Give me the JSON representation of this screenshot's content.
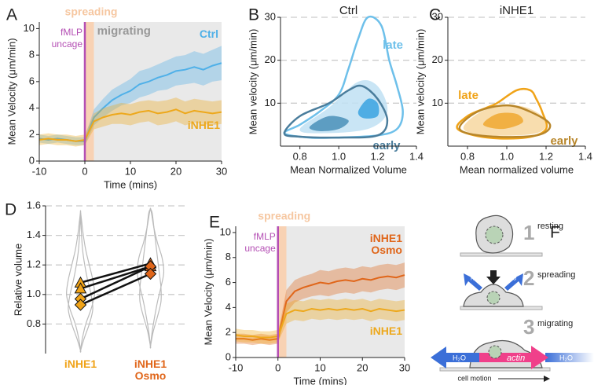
{
  "chart_data": [
    {
      "type": "line",
      "panel": "A",
      "xlabel": "Time (mins)",
      "ylabel": "Mean Velocity (μm/min)",
      "xlim": [
        -10,
        30
      ],
      "xticks": [
        -10,
        0,
        10,
        20,
        30
      ],
      "ylim": [
        0,
        10.5
      ],
      "yticks": [
        0,
        2,
        4,
        6,
        8,
        10
      ],
      "grid": false,
      "spans": [
        {
          "label": "spreading",
          "start": 0,
          "end": 2,
          "color": "#f6c7a1"
        },
        {
          "label": "migrating",
          "start": 2,
          "end": 30,
          "color": "#e4e4e4"
        }
      ],
      "vline": {
        "x": 0,
        "label": [
          "fMLP",
          "uncage"
        ],
        "color": "#b44fb4"
      },
      "x": [
        -10,
        -8,
        -6,
        -4,
        -2,
        0,
        2,
        4,
        6,
        8,
        10,
        12,
        14,
        16,
        18,
        20,
        22,
        24,
        26,
        28,
        30
      ],
      "series": [
        {
          "name": "Ctrl",
          "color": "#4fb0e8",
          "values": [
            1.7,
            1.6,
            1.7,
            1.6,
            1.5,
            1.5,
            3.3,
            4.0,
            4.6,
            5.0,
            5.3,
            5.8,
            6.0,
            6.3,
            6.5,
            6.8,
            6.9,
            7.1,
            6.9,
            7.2,
            7.4
          ],
          "errors": [
            0.3,
            0.3,
            0.3,
            0.3,
            0.3,
            0.3,
            0.6,
            0.7,
            0.8,
            0.8,
            0.9,
            1.0,
            1.0,
            1.0,
            1.1,
            1.1,
            1.1,
            1.2,
            1.2,
            1.2,
            1.3
          ]
        },
        {
          "name": "iNHE1",
          "color": "#eda81c",
          "values": [
            1.6,
            1.7,
            1.6,
            1.6,
            1.5,
            1.6,
            3.0,
            3.3,
            3.5,
            3.6,
            3.5,
            3.7,
            3.8,
            3.6,
            3.7,
            3.9,
            3.6,
            3.8,
            3.7,
            3.6,
            3.7
          ],
          "errors": [
            0.4,
            0.4,
            0.4,
            0.4,
            0.4,
            0.4,
            0.6,
            0.7,
            0.7,
            0.8,
            0.8,
            0.8,
            0.8,
            0.9,
            0.9,
            0.9,
            0.9,
            0.9,
            0.9,
            0.9,
            0.9
          ]
        }
      ]
    },
    {
      "type": "density",
      "panel": "B",
      "title": "Ctrl",
      "xlabel": "Mean Normalized Volume",
      "ylabel": "Mean velocity (μm/min)",
      "xlim": [
        0.7,
        1.4
      ],
      "xticks": [
        0.8,
        {
          "value": 1,
          "label": "1.0"
        },
        1.2,
        1.4
      ],
      "ylim": [
        0,
        30
      ],
      "yticks": [
        10,
        20,
        30
      ],
      "grid": true,
      "grid_style": "dashed",
      "contours": [
        {
          "color": "#bfe0f3",
          "fill": true,
          "x": [
            0.8,
            0.95,
            1.1,
            1.2,
            1.25,
            1.15,
            0.9
          ],
          "y": [
            4,
            9,
            15,
            14,
            8,
            4,
            3
          ]
        },
        {
          "color": "#4a90b8",
          "fill": true,
          "x": [
            0.85,
            0.95,
            1.05,
            1.0,
            0.9
          ],
          "y": [
            4.5,
            7,
            6,
            4,
            3.5
          ]
        },
        {
          "color": "#3aa3e0",
          "fill": true,
          "x": [
            1.1,
            1.15,
            1.2,
            1.2,
            1.13
          ],
          "y": [
            8,
            11,
            10,
            7,
            6.5
          ]
        },
        {
          "name": "late",
          "color": "#6ec0ea",
          "x": [
            0.72,
            0.8,
            0.9,
            1.0,
            1.05,
            1.1,
            1.15,
            1.22,
            1.26,
            1.3,
            1.33,
            1.3,
            1.2,
            1.0,
            0.85
          ],
          "y": [
            3,
            5,
            8,
            12,
            18,
            25,
            30,
            28,
            20,
            14,
            8,
            4,
            2.5,
            2,
            2
          ]
        },
        {
          "name": "early",
          "color": "#4a7d9c",
          "x": [
            0.72,
            0.8,
            0.95,
            1.05,
            1.12,
            1.2,
            1.25,
            1.2,
            1.0,
            0.8
          ],
          "y": [
            3,
            7,
            10,
            13,
            14,
            11,
            6,
            2.5,
            2,
            2.2
          ]
        }
      ]
    },
    {
      "type": "density",
      "panel": "C",
      "title": "iNHE1",
      "xlabel": "Mean normalized volume",
      "ylabel": "Mean velocity (μm/min)",
      "xlim": [
        0.7,
        1.4
      ],
      "xticks": [
        0.8,
        {
          "value": 1,
          "label": "1.0"
        },
        1.2,
        1.4
      ],
      "ylim": [
        0,
        30
      ],
      "yticks": [
        10,
        20,
        30
      ],
      "grid": true,
      "grid_style": "dashed",
      "contours": [
        {
          "color": "#f7d7a0",
          "fill": true,
          "x": [
            0.78,
            0.85,
            0.97,
            1.1,
            1.2,
            1.15,
            0.9
          ],
          "y": [
            4,
            7.5,
            9.5,
            9,
            6,
            3,
            2.5
          ]
        },
        {
          "color": "#f0a830",
          "fill": true,
          "x": [
            0.88,
            0.95,
            1.05,
            1.08,
            0.98
          ],
          "y": [
            5,
            7.5,
            7.5,
            5.5,
            4
          ]
        },
        {
          "name": "late",
          "color": "#f0a318",
          "x": [
            0.75,
            0.8,
            0.9,
            0.95,
            1.05,
            1.12,
            1.15,
            1.18,
            1.2,
            1.1,
            0.9
          ],
          "y": [
            4,
            7,
            9,
            10,
            13,
            13,
            11,
            8,
            4,
            2,
            2
          ]
        },
        {
          "name": "early",
          "color": "#b8862a",
          "x": [
            0.76,
            0.85,
            1.0,
            1.12,
            1.22,
            1.15,
            0.9
          ],
          "y": [
            4,
            8,
            9.5,
            8,
            5,
            2.5,
            2.3
          ]
        }
      ]
    },
    {
      "type": "violin",
      "panel": "D",
      "ylabel": "Relative volume",
      "categories": [
        "iNHE1",
        "iNHE1 Osmo"
      ],
      "category_colors": [
        "#f0a318",
        "#e0661a"
      ],
      "ylim": [
        0.6,
        1.6
      ],
      "yticks": [
        0.8,
        {
          "value": 1,
          "label": "1.0"
        },
        1.2,
        1.4,
        1.6
      ],
      "grid": true,
      "grid_style": "dashed",
      "violins": [
        [
          {
            "y": [
              0.62,
              0.7,
              0.8,
              0.9,
              1.0,
              1.1,
              1.2,
              1.3,
              1.4,
              1.5,
              1.56
            ],
            "width": [
              0,
              0.05,
              0.15,
              0.3,
              0.4,
              0.35,
              0.25,
              0.15,
              0.08,
              0.03,
              0
            ]
          },
          {
            "y": [
              0.62,
              0.7,
              0.8,
              0.9,
              1.0,
              1.1,
              1.2,
              1.3,
              1.4,
              1.5,
              1.56
            ],
            "width": [
              0,
              0.1,
              0.25,
              0.35,
              0.3,
              0.2,
              0.12,
              0.06,
              0.03,
              0.01,
              0
            ]
          }
        ],
        [
          {
            "y": [
              0.65,
              0.75,
              0.85,
              0.95,
              1.05,
              1.15,
              1.25,
              1.35,
              1.45,
              1.55,
              1.58
            ],
            "width": [
              0,
              0.05,
              0.12,
              0.2,
              0.3,
              0.38,
              0.33,
              0.2,
              0.1,
              0.03,
              0
            ]
          },
          {
            "y": [
              0.65,
              0.75,
              0.85,
              0.95,
              1.05,
              1.15,
              1.25,
              1.35,
              1.45,
              1.55,
              1.58
            ],
            "width": [
              0,
              0.08,
              0.2,
              0.3,
              0.3,
              0.25,
              0.2,
              0.15,
              0.1,
              0.05,
              0
            ]
          }
        ]
      ],
      "series": [
        {
          "marker": "triangle",
          "values": [
            1.08,
            1.21
          ]
        },
        {
          "marker": "triangle",
          "values": [
            1.04,
            1.19
          ]
        },
        {
          "marker": "diamond",
          "values": [
            0.97,
            1.19
          ]
        },
        {
          "marker": "diamond",
          "values": [
            0.93,
            1.14
          ]
        }
      ]
    },
    {
      "type": "line",
      "panel": "E",
      "xlabel": "Time (mins)",
      "ylabel": "Mean Velocity (μm/min)",
      "xlim": [
        -10,
        30
      ],
      "xticks": [
        -10,
        0,
        10,
        20,
        30
      ],
      "ylim": [
        0,
        10.5
      ],
      "yticks": [
        0,
        2,
        4,
        6,
        8,
        10
      ],
      "grid": false,
      "spans": [
        {
          "label": "spreading",
          "start": 0,
          "end": 2,
          "color": "#f6c7a1"
        },
        {
          "start": 2,
          "end": 30,
          "color": "#e4e4e4"
        }
      ],
      "vline": {
        "x": 0,
        "label": [
          "fMLP",
          "uncage"
        ],
        "color": "#b44fb4"
      },
      "x": [
        -10,
        -8,
        -6,
        -4,
        -2,
        0,
        2,
        4,
        6,
        8,
        10,
        12,
        14,
        16,
        18,
        20,
        22,
        24,
        26,
        28,
        30
      ],
      "series": [
        {
          "name": "iNHE1 Osmo",
          "color": "#e0661a",
          "values": [
            1.5,
            1.5,
            1.4,
            1.5,
            1.4,
            1.5,
            4.5,
            5.3,
            5.6,
            5.8,
            6.0,
            5.9,
            6.1,
            6.2,
            6.1,
            6.3,
            6.2,
            6.4,
            6.5,
            6.4,
            6.6
          ],
          "errors": [
            0.4,
            0.4,
            0.4,
            0.4,
            0.4,
            0.4,
            0.9,
            0.9,
            0.9,
            0.9,
            1.0,
            1.0,
            1.0,
            1.0,
            1.0,
            1.0,
            1.0,
            1.0,
            1.0,
            1.0,
            1.0
          ]
        },
        {
          "name": "iNHE1",
          "color": "#eda81c",
          "values": [
            1.8,
            1.7,
            1.7,
            1.6,
            1.6,
            1.7,
            3.5,
            3.8,
            3.7,
            3.9,
            3.8,
            3.9,
            3.8,
            3.9,
            3.8,
            3.9,
            3.7,
            3.9,
            3.8,
            3.7,
            3.8
          ],
          "errors": [
            0.5,
            0.5,
            0.5,
            0.5,
            0.5,
            0.5,
            0.8,
            0.8,
            0.8,
            0.8,
            0.8,
            0.8,
            0.8,
            0.8,
            0.8,
            0.8,
            0.8,
            0.8,
            0.8,
            0.8,
            0.8
          ]
        }
      ]
    }
  ],
  "diagram": {
    "panel": "F",
    "steps": [
      {
        "number": "1",
        "label": "resting"
      },
      {
        "number": "2",
        "label": "spreading"
      },
      {
        "number": "3",
        "label": "migrating"
      }
    ],
    "water": "H₂O",
    "actin": "actin",
    "motion": "cell motion"
  }
}
